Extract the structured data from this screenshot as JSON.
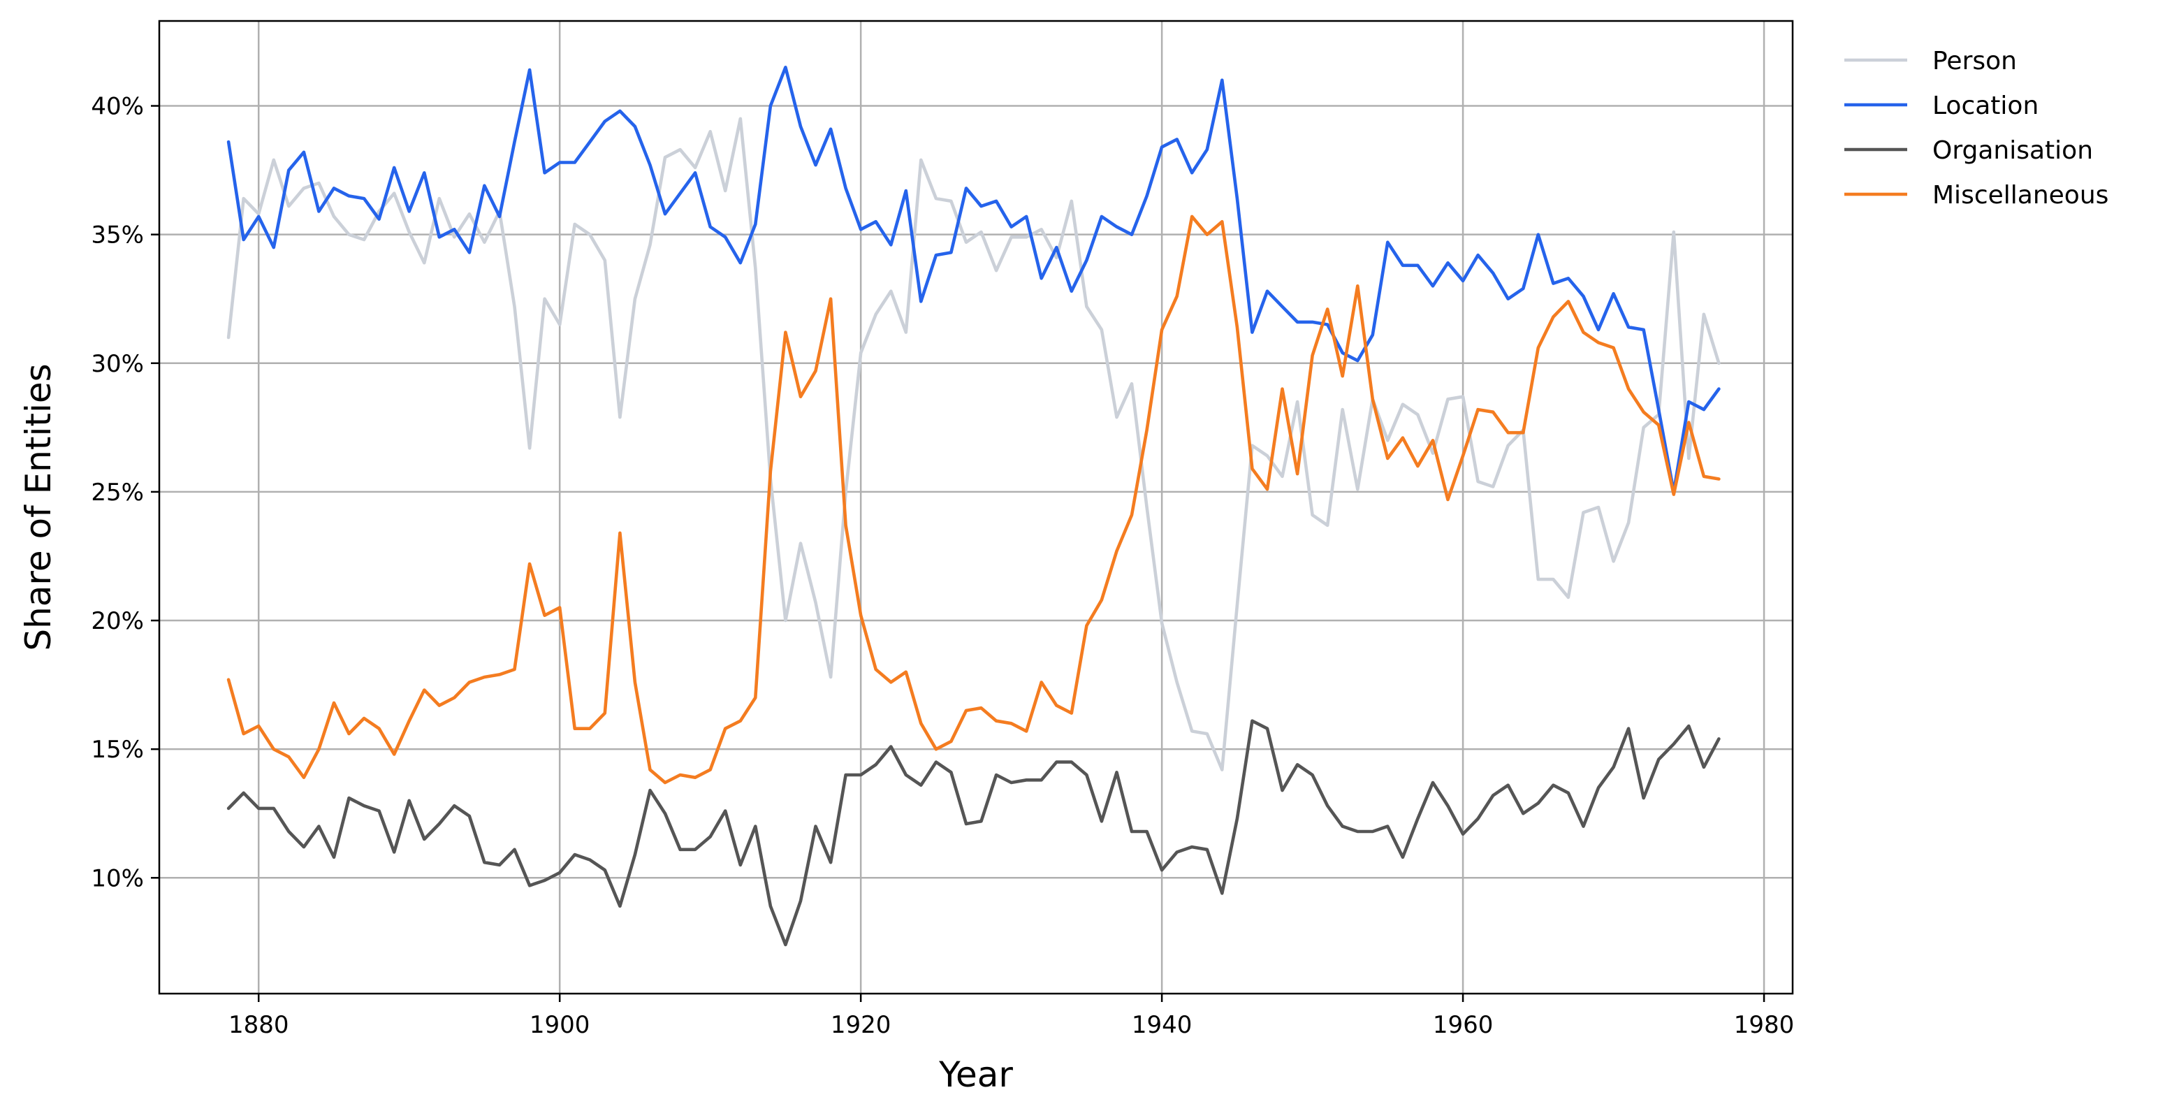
{
  "chart_data": {
    "type": "line",
    "title": "",
    "xlabel": "Year",
    "ylabel": "Share of Entities",
    "xlim": [
      1873.4,
      1981.9
    ],
    "ylim": [
      5.5,
      43.3
    ],
    "x_ticks": [
      1880,
      1900,
      1920,
      1940,
      1960,
      1980
    ],
    "y_ticks": [
      10,
      15,
      20,
      25,
      30,
      35,
      40
    ],
    "y_tick_suffix": "%",
    "grid": true,
    "legend_position": "outside-top-right",
    "x": [
      1878,
      1879,
      1880,
      1881,
      1882,
      1883,
      1884,
      1885,
      1886,
      1887,
      1888,
      1889,
      1890,
      1891,
      1892,
      1893,
      1894,
      1895,
      1896,
      1897,
      1898,
      1899,
      1900,
      1901,
      1902,
      1903,
      1904,
      1905,
      1906,
      1907,
      1908,
      1909,
      1910,
      1911,
      1912,
      1913,
      1914,
      1915,
      1916,
      1917,
      1918,
      1919,
      1920,
      1921,
      1922,
      1923,
      1924,
      1925,
      1926,
      1927,
      1928,
      1929,
      1930,
      1931,
      1932,
      1933,
      1934,
      1935,
      1936,
      1937,
      1938,
      1939,
      1940,
      1941,
      1942,
      1943,
      1944,
      1945,
      1946,
      1947,
      1948,
      1949,
      1950,
      1951,
      1952,
      1953,
      1954,
      1955,
      1956,
      1957,
      1958,
      1959,
      1960,
      1961,
      1962,
      1963,
      1964,
      1965,
      1966,
      1967,
      1968,
      1969,
      1970,
      1971,
      1972,
      1973,
      1974,
      1975,
      1976,
      1977
    ],
    "series": [
      {
        "name": "Person",
        "color": "#cbd0d8",
        "values": [
          31.0,
          36.4,
          35.8,
          37.9,
          36.1,
          36.8,
          37.0,
          35.7,
          35.0,
          34.8,
          35.9,
          36.6,
          35.1,
          33.9,
          36.4,
          34.9,
          35.8,
          34.7,
          35.9,
          32.2,
          26.7,
          32.5,
          31.5,
          35.4,
          35.0,
          34.0,
          27.9,
          32.5,
          34.6,
          38.0,
          38.3,
          37.6,
          39.0,
          36.7,
          39.5,
          33.7,
          25.5,
          20.0,
          23.0,
          20.7,
          17.8,
          25.0,
          30.4,
          31.9,
          32.8,
          31.2,
          37.9,
          36.4,
          36.3,
          34.7,
          35.1,
          33.6,
          34.9,
          34.9,
          35.2,
          34.1,
          36.3,
          32.2,
          31.3,
          27.9,
          29.2,
          24.4,
          19.9,
          17.6,
          15.7,
          15.6,
          14.2,
          20.6,
          26.8,
          26.4,
          25.6,
          28.5,
          24.1,
          23.7,
          28.2,
          25.1,
          28.6,
          27.0,
          28.4,
          28.0,
          26.5,
          28.6,
          28.7,
          25.4,
          25.2,
          26.8,
          27.4,
          21.6,
          21.6,
          20.9,
          24.2,
          24.4,
          22.3,
          23.8,
          27.5,
          28.0,
          35.1,
          26.3,
          31.9,
          30.0
        ]
      },
      {
        "name": "Location",
        "color": "#2563eb",
        "values": [
          38.6,
          34.8,
          35.7,
          34.5,
          37.5,
          38.2,
          35.9,
          36.8,
          36.5,
          36.4,
          35.6,
          37.6,
          35.9,
          37.4,
          34.9,
          35.2,
          34.3,
          36.9,
          35.7,
          38.6,
          41.4,
          37.4,
          37.8,
          37.8,
          38.6,
          39.4,
          39.8,
          39.2,
          37.7,
          35.8,
          36.6,
          37.4,
          35.3,
          34.9,
          33.9,
          35.4,
          40.0,
          41.5,
          39.2,
          37.7,
          39.1,
          36.8,
          35.2,
          35.5,
          34.6,
          36.7,
          32.4,
          34.2,
          34.3,
          36.8,
          36.1,
          36.3,
          35.3,
          35.7,
          33.3,
          34.5,
          32.8,
          34.0,
          35.7,
          35.3,
          35.0,
          36.5,
          38.4,
          38.7,
          37.4,
          38.3,
          41.0,
          36.4,
          31.2,
          32.8,
          32.2,
          31.6,
          31.6,
          31.5,
          30.4,
          30.1,
          31.1,
          34.7,
          33.8,
          33.8,
          33.0,
          33.9,
          33.2,
          34.2,
          33.5,
          32.5,
          32.9,
          35.0,
          33.1,
          33.3,
          32.6,
          31.3,
          32.7,
          31.4,
          31.3,
          28.2,
          25.0,
          28.5,
          28.2,
          29.0
        ]
      },
      {
        "name": "Organisation",
        "color": "#555555",
        "values": [
          12.7,
          13.3,
          12.7,
          12.7,
          11.8,
          11.2,
          12.0,
          10.8,
          13.1,
          12.8,
          12.6,
          11.0,
          13.0,
          11.5,
          12.1,
          12.8,
          12.4,
          10.6,
          10.5,
          11.1,
          9.7,
          9.9,
          10.2,
          10.9,
          10.7,
          10.3,
          8.9,
          10.9,
          13.4,
          12.5,
          11.1,
          11.1,
          11.6,
          12.6,
          10.5,
          12.0,
          8.9,
          7.4,
          9.1,
          12.0,
          10.6,
          14.0,
          14.0,
          14.4,
          15.1,
          14.0,
          13.6,
          14.5,
          14.1,
          12.1,
          12.2,
          14.0,
          13.7,
          13.8,
          13.8,
          14.5,
          14.5,
          14.0,
          12.2,
          14.1,
          11.8,
          11.8,
          10.3,
          11.0,
          11.2,
          11.1,
          9.4,
          12.3,
          16.1,
          15.8,
          13.4,
          14.4,
          14.0,
          12.8,
          12.0,
          11.8,
          11.8,
          12.0,
          10.8,
          12.3,
          13.7,
          12.8,
          11.7,
          12.3,
          13.2,
          13.6,
          12.5,
          12.9,
          13.6,
          13.3,
          12.0,
          13.5,
          14.3,
          15.8,
          13.1,
          14.6,
          15.2,
          15.9,
          14.3,
          15.4
        ]
      },
      {
        "name": "Miscellaneous",
        "color": "#f47c20",
        "values": [
          17.7,
          15.6,
          15.9,
          15.0,
          14.7,
          13.9,
          15.0,
          16.8,
          15.6,
          16.2,
          15.8,
          14.8,
          16.1,
          17.3,
          16.7,
          17.0,
          17.6,
          17.8,
          17.9,
          18.1,
          22.2,
          20.2,
          20.5,
          15.8,
          15.8,
          16.4,
          23.4,
          17.6,
          14.2,
          13.7,
          14.0,
          13.9,
          14.2,
          15.8,
          16.1,
          17.0,
          25.8,
          31.2,
          28.7,
          29.7,
          32.5,
          23.7,
          20.2,
          18.1,
          17.6,
          18.0,
          16.0,
          15.0,
          15.3,
          16.5,
          16.6,
          16.1,
          16.0,
          15.7,
          17.6,
          16.7,
          16.4,
          19.8,
          20.8,
          22.7,
          24.1,
          27.4,
          31.3,
          32.6,
          35.7,
          35.0,
          35.5,
          31.4,
          25.9,
          25.1,
          29.0,
          25.7,
          30.3,
          32.1,
          29.5,
          33.0,
          28.6,
          26.3,
          27.1,
          26.0,
          27.0,
          24.7,
          26.4,
          28.2,
          28.1,
          27.3,
          27.3,
          30.6,
          31.8,
          32.4,
          31.2,
          30.8,
          30.6,
          29.0,
          28.1,
          27.6,
          24.9,
          27.7,
          25.6,
          25.5
        ]
      }
    ]
  }
}
